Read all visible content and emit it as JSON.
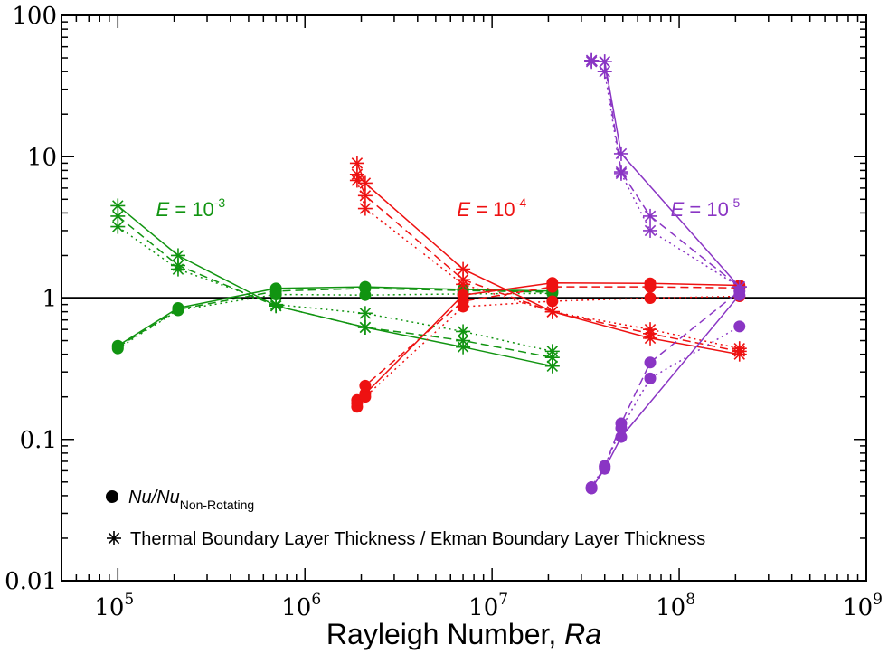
{
  "chart_data": {
    "type": "scatter",
    "xlabel": "Rayleigh Number, ",
    "xlabel_italic": "Ra",
    "x_scale": "log",
    "y_scale": "log",
    "xlim": [
      50000,
      1000000000
    ],
    "ylim": [
      0.01,
      100
    ],
    "x_ticks": [
      {
        "value": 100000,
        "label_base": "10",
        "label_exp": "5"
      },
      {
        "value": 1000000,
        "label_base": "10",
        "label_exp": "6"
      },
      {
        "value": 10000000,
        "label_base": "10",
        "label_exp": "7"
      },
      {
        "value": 100000000,
        "label_base": "10",
        "label_exp": "8"
      },
      {
        "value": 1000000000,
        "label_base": "10",
        "label_exp": "9"
      }
    ],
    "y_ticks": [
      {
        "value": 0.01,
        "label": "0.01"
      },
      {
        "value": 0.1,
        "label": "0.1"
      },
      {
        "value": 1,
        "label": "1"
      },
      {
        "value": 10,
        "label": "10"
      },
      {
        "value": 100,
        "label": "100"
      }
    ],
    "reference_line": 1,
    "grid": false,
    "colors": {
      "green": "#119411",
      "red": "#ee1111",
      "purple": "#8a35c4",
      "axis": "#000000"
    },
    "annotations": [
      {
        "prefix": "E",
        "text": " = 10",
        "sup": "-3",
        "color": "#119411",
        "x": 160000,
        "y": 3.8
      },
      {
        "prefix": "E",
        "text": " = 10",
        "sup": "-4",
        "color": "#ee1111",
        "x": 6500000,
        "y": 3.8
      },
      {
        "prefix": "E",
        "text": " = 10",
        "sup": "-5",
        "color": "#8a35c4",
        "x": 90000000,
        "y": 3.8
      }
    ],
    "legend": {
      "placement": "bottom-left",
      "items": [
        {
          "marker": "circle",
          "label": "Nu/Nu",
          "label_sub": "Non-Rotating"
        },
        {
          "marker": "asterisk",
          "label": "Thermal Boundary Layer Thickness / Ekman Boundary Layer Thickness"
        }
      ]
    },
    "series": [
      {
        "group": "E=1e-3",
        "color": "#119411",
        "marker": "circle",
        "style": "solid",
        "x": [
          100000,
          210000,
          700000,
          2100000,
          7000000,
          21000000
        ],
        "y": [
          0.46,
          0.85,
          1.17,
          1.2,
          1.15,
          1.12
        ]
      },
      {
        "group": "E=1e-3",
        "color": "#119411",
        "marker": "circle",
        "style": "dashed",
        "x": [
          100000,
          210000,
          700000,
          2100000,
          7000000,
          21000000
        ],
        "y": [
          0.45,
          0.83,
          1.12,
          1.17,
          1.13,
          1.1
        ]
      },
      {
        "group": "E=1e-3",
        "color": "#119411",
        "marker": "circle",
        "style": "dotted",
        "x": [
          100000,
          210000,
          700000,
          2100000,
          7000000,
          21000000
        ],
        "y": [
          0.44,
          0.82,
          1.06,
          1.05,
          1.07,
          1.08
        ]
      },
      {
        "group": "E=1e-3",
        "color": "#119411",
        "marker": "asterisk",
        "style": "solid",
        "x": [
          100000,
          210000,
          700000,
          2100000,
          7000000,
          21000000
        ],
        "y": [
          4.5,
          2.0,
          0.88,
          0.62,
          0.45,
          0.33
        ]
      },
      {
        "group": "E=1e-3",
        "color": "#119411",
        "marker": "asterisk",
        "style": "dashed",
        "x": [
          100000,
          210000,
          700000,
          2100000,
          7000000,
          21000000
        ],
        "y": [
          3.8,
          1.7,
          0.88,
          0.62,
          0.5,
          0.38
        ]
      },
      {
        "group": "E=1e-3",
        "color": "#119411",
        "marker": "asterisk",
        "style": "dotted",
        "x": [
          100000,
          210000,
          700000,
          2100000,
          7000000,
          21000000
        ],
        "y": [
          3.2,
          1.6,
          0.9,
          0.78,
          0.58,
          0.42
        ]
      },
      {
        "group": "E=1e-4",
        "color": "#ee1111",
        "marker": "circle",
        "style": "solid",
        "x": [
          1900000,
          2100000,
          7000000,
          21000000,
          70000000,
          210000000
        ],
        "y": [
          0.17,
          0.21,
          1.05,
          1.28,
          1.27,
          1.23
        ]
      },
      {
        "group": "E=1e-4",
        "color": "#ee1111",
        "marker": "circle",
        "style": "dashed",
        "x": [
          1900000,
          2100000,
          7000000,
          21000000,
          70000000,
          210000000
        ],
        "y": [
          0.18,
          0.24,
          0.95,
          1.2,
          1.2,
          1.18
        ]
      },
      {
        "group": "E=1e-4",
        "color": "#ee1111",
        "marker": "circle",
        "style": "dotted",
        "x": [
          1900000,
          2100000,
          7000000,
          21000000,
          70000000,
          210000000
        ],
        "y": [
          0.19,
          0.2,
          0.87,
          0.95,
          1.0,
          1.03
        ]
      },
      {
        "group": "E=1e-4",
        "color": "#ee1111",
        "marker": "asterisk",
        "style": "solid",
        "x": [
          1900000,
          2100000,
          7000000,
          21000000,
          70000000,
          210000000
        ],
        "y": [
          9.0,
          6.5,
          1.6,
          0.8,
          0.52,
          0.4
        ]
      },
      {
        "group": "E=1e-4",
        "color": "#ee1111",
        "marker": "asterisk",
        "style": "dashed",
        "x": [
          1900000,
          2100000,
          7000000,
          21000000,
          70000000,
          210000000
        ],
        "y": [
          7.5,
          5.3,
          1.35,
          0.8,
          0.56,
          0.42
        ]
      },
      {
        "group": "E=1e-4",
        "color": "#ee1111",
        "marker": "asterisk",
        "style": "dotted",
        "x": [
          1900000,
          2100000,
          7000000,
          21000000,
          70000000,
          210000000
        ],
        "y": [
          6.8,
          4.3,
          1.25,
          0.8,
          0.6,
          0.44
        ]
      },
      {
        "group": "E=1e-5",
        "color": "#8a35c4",
        "marker": "circle",
        "style": "solid",
        "x": [
          34000000,
          40000000,
          49000000,
          210000000
        ],
        "y": [
          0.045,
          0.062,
          0.104,
          1.05
        ]
      },
      {
        "group": "E=1e-5",
        "color": "#8a35c4",
        "marker": "circle",
        "style": "dashed",
        "x": [
          34000000,
          40000000,
          49000000,
          70000000,
          210000000
        ],
        "y": [
          0.045,
          0.064,
          0.13,
          0.35,
          1.12
        ]
      },
      {
        "group": "E=1e-5",
        "color": "#8a35c4",
        "marker": "circle",
        "style": "dotted",
        "x": [
          34000000,
          40000000,
          49000000,
          70000000,
          210000000
        ],
        "y": [
          0.046,
          0.065,
          0.12,
          0.27,
          0.63
        ]
      },
      {
        "group": "E=1e-5",
        "color": "#8a35c4",
        "marker": "asterisk",
        "style": "solid",
        "x": [
          34000000,
          40000000,
          49000000,
          210000000
        ],
        "y": [
          48,
          47,
          10.5,
          1.2
        ]
      },
      {
        "group": "E=1e-5",
        "color": "#8a35c4",
        "marker": "asterisk",
        "style": "dashed",
        "x": [
          34000000,
          40000000,
          49000000,
          70000000,
          210000000
        ],
        "y": [
          48,
          47,
          7.8,
          3.8,
          1.2
        ]
      },
      {
        "group": "E=1e-5",
        "color": "#8a35c4",
        "marker": "asterisk",
        "style": "dotted",
        "x": [
          34000000,
          40000000,
          49000000,
          70000000,
          210000000
        ],
        "y": [
          47,
          40,
          7.6,
          3.0,
          1.2
        ]
      }
    ]
  }
}
